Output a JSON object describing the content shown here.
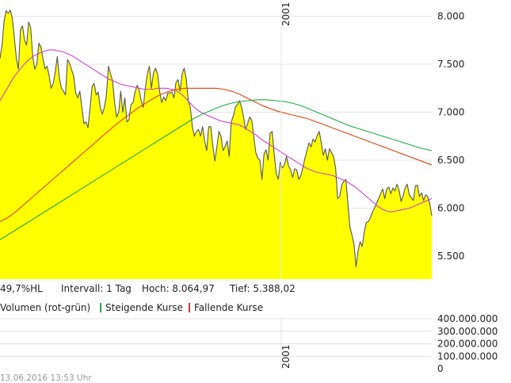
{
  "chart_data": {
    "type": "area",
    "price_panel": {
      "ylim": [
        5260,
        8170
      ],
      "yticks": [
        5500,
        6000,
        6500,
        7000,
        7500,
        8000
      ],
      "ytick_labels": [
        "5.500",
        "6.000",
        "6.500",
        "7.000",
        "7.500",
        "8.000"
      ],
      "year_marker_label": "2001",
      "area_color": "#ffff00",
      "line_color": "#555555",
      "series": [
        {
          "values": [
            7560,
            7700,
            7950,
            8060,
            8030,
            8065,
            7980,
            7780,
            7560,
            7450,
            7860,
            7900,
            7750,
            7700,
            7940,
            7880,
            7580,
            7450,
            7500,
            7720,
            7680,
            7560,
            7450,
            7480,
            7380,
            7250,
            7300,
            7420,
            7580,
            7360,
            7250,
            7220,
            7180,
            7550,
            7510,
            7440,
            7380,
            7200,
            7150,
            7220,
            7050,
            6880,
            6900,
            6840,
            7040,
            7270,
            7300,
            7180,
            7210,
            7050,
            6980,
            7050,
            7180,
            7480,
            7400,
            7330,
            7100,
            6950,
            7000,
            7220,
            7000,
            7150,
            6900,
            6920,
            7080,
            7100,
            7210,
            7280,
            7230,
            7120,
            7050,
            7250,
            7400,
            7480,
            7250,
            7410,
            7460,
            7400,
            7220,
            7100,
            7160,
            7120,
            7200,
            7200,
            7210,
            7150,
            7310,
            7340,
            7220,
            7400,
            7460,
            7350,
            7120,
            7050,
            6850,
            6750,
            6800,
            6820,
            6750,
            6850,
            6700,
            6600,
            6850,
            6850,
            6650,
            6490,
            6640,
            6800,
            6750,
            6600,
            6640,
            6700,
            6540,
            6900,
            6960,
            7050,
            7080,
            7120,
            7060,
            6950,
            6820,
            6880,
            6950,
            6920,
            6750,
            6580,
            6520,
            6500,
            6300,
            6560,
            6610,
            6500,
            6780,
            6800,
            6560,
            6360,
            6300,
            6480,
            6420,
            6450,
            6540,
            6440,
            6400,
            6320,
            6410,
            6400,
            6300,
            6340,
            6420,
            6520,
            6600,
            6680,
            6640,
            6720,
            6690,
            6760,
            6800,
            6680,
            6550,
            6620,
            6500,
            6620,
            6580,
            6540,
            6420,
            6100,
            6120,
            6240,
            6280,
            6300,
            6050,
            5800,
            5720,
            5620,
            5388,
            5560,
            5650,
            5600,
            5750,
            5850,
            5860,
            5900,
            5960,
            6000,
            6050,
            6100,
            6150,
            6200,
            6100,
            6200,
            6220,
            6150,
            6210,
            6180,
            6250,
            6190,
            6070,
            6130,
            6210,
            6250,
            6140,
            6110,
            6080,
            6230,
            6240,
            6120,
            6160,
            6080,
            6140,
            6120,
            6050,
            5920
          ],
          "fill": true
        },
        {
          "values": [
            7120,
            7200,
            7280,
            7360,
            7420,
            7480,
            7530,
            7570,
            7600,
            7620,
            7640,
            7650,
            7650,
            7640,
            7630,
            7610,
            7590,
            7560,
            7530,
            7500,
            7470,
            7440,
            7410,
            7380,
            7350,
            7330,
            7310,
            7290,
            7280,
            7270,
            7260,
            7250,
            7240,
            7240,
            7240,
            7250,
            7250,
            7250,
            7240,
            7230,
            7200,
            7160,
            7110,
            7060,
            7020,
            6990,
            6970,
            6950,
            6930,
            6910,
            6900,
            6890,
            6880,
            6870,
            6850,
            6820,
            6790,
            6760,
            6720,
            6690,
            6660,
            6630,
            6600,
            6570,
            6540,
            6510,
            6480,
            6450,
            6420,
            6400,
            6380,
            6370,
            6360,
            6350,
            6340,
            6320,
            6300,
            6280,
            6250,
            6220,
            6180,
            6140,
            6100,
            6060,
            6020,
            5990,
            5970,
            5960,
            5970,
            5980,
            5990,
            6000,
            6020,
            6040,
            6060,
            6080,
            6100
          ],
          "color": "#cc44cc"
        },
        {
          "values": [
            5860,
            5900,
            5960,
            6030,
            6100,
            6170,
            6240,
            6310,
            6380,
            6450,
            6520,
            6590,
            6660,
            6730,
            6800,
            6870,
            6930,
            6990,
            7050,
            7100,
            7150,
            7190,
            7220,
            7240,
            7250,
            7250,
            7250,
            7250,
            7250,
            7240,
            7220,
            7190,
            7150,
            7110,
            7070,
            7040,
            7010,
            6990,
            6970,
            6950,
            6930,
            6900,
            6870,
            6840,
            6810,
            6780,
            6750,
            6720,
            6690,
            6660,
            6630,
            6600,
            6570,
            6540,
            6510,
            6480,
            6450
          ],
          "color": "#dd4411"
        },
        {
          "values": [
            5670,
            5730,
            5790,
            5850,
            5910,
            5970,
            6030,
            6090,
            6150,
            6210,
            6270,
            6330,
            6390,
            6450,
            6510,
            6570,
            6630,
            6690,
            6750,
            6810,
            6870,
            6930,
            6980,
            7020,
            7060,
            7090,
            7110,
            7120,
            7130,
            7130,
            7120,
            7110,
            7090,
            7060,
            7020,
            6980,
            6940,
            6900,
            6860,
            6830,
            6800,
            6770,
            6740,
            6710,
            6680,
            6650,
            6620,
            6600
          ],
          "color": "#22aa44"
        }
      ]
    },
    "stats_bar": {
      "hl_label": "49,7%HL",
      "interval": "Intervall: 1 Tag",
      "high": "Hoch:  8.064,97",
      "low": "Tief:  5.388,02"
    },
    "volume_panel": {
      "title": "Volumen (rot-grün)",
      "legend": [
        {
          "label": "Steigende Kurse",
          "color": "#22aa44"
        },
        {
          "label": "Fallende Kurse",
          "color": "#dd3333"
        }
      ],
      "ylim": [
        0,
        400000000
      ],
      "yticks": [
        0,
        100000000,
        200000000,
        300000000,
        400000000
      ],
      "ytick_labels": [
        "0",
        "100.000.000",
        "200.000.000",
        "300.000.000",
        "400.000.000"
      ],
      "year_marker_label": "2001"
    },
    "footer": "13.06.2016 13:53 Uhr"
  }
}
